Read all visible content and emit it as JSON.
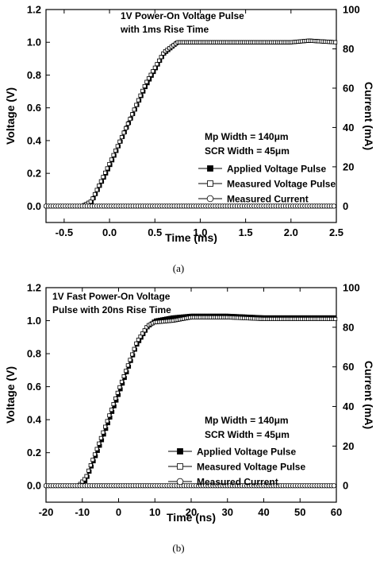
{
  "chart_data": [
    {
      "type": "line",
      "caption": "(a)",
      "title_lines": [
        "1V Power-On Voltage Pulse",
        "with 1ms Rise Time"
      ],
      "notes": [
        "Mp Width = 140μm",
        "SCR Width = 45μm"
      ],
      "xlabel": "Time (ms)",
      "ylabel": "Voltage (V)",
      "y2label": "Current (mA)",
      "xlim": [
        -0.7,
        2.5
      ],
      "ylim": [
        -0.1,
        1.2
      ],
      "y2lim": [
        -8.333,
        100
      ],
      "xticks": [
        "-0.5",
        "0.0",
        "0.5",
        "1.0",
        "1.5",
        "2.0",
        "2.5"
      ],
      "xtick_values": [
        -0.5,
        0.0,
        0.5,
        1.0,
        1.5,
        2.0,
        2.5
      ],
      "yticks": [
        "0.0",
        "0.2",
        "0.4",
        "0.6",
        "0.8",
        "1.0",
        "1.2"
      ],
      "ytick_values": [
        0.0,
        0.2,
        0.4,
        0.6,
        0.8,
        1.0,
        1.2
      ],
      "y2ticks": [
        "0",
        "20",
        "40",
        "60",
        "80",
        "100"
      ],
      "y2tick_values": [
        0,
        20,
        40,
        60,
        80,
        100
      ],
      "legend_position": "right-middle",
      "series": [
        {
          "name": "Applied Voltage Pulse",
          "marker": "filled-square",
          "axis": "left",
          "x": [
            -0.7,
            -0.3,
            -0.2,
            0.0,
            0.2,
            0.4,
            0.6,
            0.75,
            1.0,
            1.5,
            2.0,
            2.2,
            2.5
          ],
          "y": [
            0.0,
            0.0,
            0.02,
            0.24,
            0.49,
            0.73,
            0.93,
            1.0,
            1.0,
            1.0,
            1.0,
            1.01,
            1.0
          ]
        },
        {
          "name": "Measured Voltage Pulse",
          "marker": "open-square",
          "axis": "left",
          "x": [
            -0.7,
            -0.3,
            -0.2,
            0.0,
            0.2,
            0.4,
            0.6,
            0.75,
            1.0,
            1.5,
            2.0,
            2.2,
            2.5
          ],
          "y": [
            0.0,
            0.0,
            0.03,
            0.26,
            0.5,
            0.75,
            0.94,
            1.0,
            1.0,
            1.0,
            1.0,
            1.01,
            1.0
          ]
        },
        {
          "name": "Measured Current",
          "marker": "open-circle",
          "axis": "right",
          "x": [
            -0.7,
            2.5
          ],
          "y": [
            0.0,
            0.0
          ]
        }
      ]
    },
    {
      "type": "line",
      "caption": "(b)",
      "title_lines": [
        "1V Fast Power-On Voltage",
        "Pulse with 20ns Rise Time"
      ],
      "notes": [
        "Mp Width = 140μm",
        "SCR Width = 45μm"
      ],
      "xlabel": "Time (ns)",
      "ylabel": "Voltage (V)",
      "y2label": "Current (mA)",
      "xlim": [
        -20,
        60
      ],
      "ylim": [
        -0.1,
        1.2
      ],
      "y2lim": [
        -8.333,
        100
      ],
      "xticks": [
        "-20",
        "-10",
        "0",
        "10",
        "20",
        "30",
        "40",
        "50",
        "60"
      ],
      "xtick_values": [
        -20,
        -10,
        0,
        10,
        20,
        30,
        40,
        50,
        60
      ],
      "yticks": [
        "0.0",
        "0.2",
        "0.4",
        "0.6",
        "0.8",
        "1.0",
        "1.2"
      ],
      "ytick_values": [
        0.0,
        0.2,
        0.4,
        0.6,
        0.8,
        1.0,
        1.2
      ],
      "y2ticks": [
        "0",
        "20",
        "40",
        "60",
        "80",
        "100"
      ],
      "y2tick_values": [
        0,
        20,
        40,
        60,
        80,
        100
      ],
      "legend_position": "bottom-right",
      "series": [
        {
          "name": "Applied Voltage Pulse",
          "marker": "filled-square",
          "axis": "left",
          "x": [
            -20,
            -11,
            -9,
            -5,
            0,
            5,
            8,
            10,
            15,
            20,
            30,
            40,
            50,
            60
          ],
          "y": [
            0.0,
            0.0,
            0.03,
            0.25,
            0.55,
            0.85,
            0.96,
            1.0,
            1.02,
            1.03,
            1.03,
            1.02,
            1.02,
            1.02
          ]
        },
        {
          "name": "Measured Voltage Pulse",
          "marker": "open-square",
          "axis": "left",
          "x": [
            -20,
            -11,
            -9,
            -5,
            0,
            5,
            8,
            10,
            15,
            20,
            30,
            40,
            50,
            60
          ],
          "y": [
            0.0,
            0.0,
            0.05,
            0.28,
            0.58,
            0.87,
            0.97,
            0.99,
            1.0,
            1.02,
            1.02,
            1.01,
            1.01,
            1.01
          ]
        },
        {
          "name": "Measured Current",
          "marker": "open-circle",
          "axis": "right",
          "x": [
            -20,
            60
          ],
          "y": [
            0.0,
            0.0
          ]
        }
      ]
    }
  ]
}
